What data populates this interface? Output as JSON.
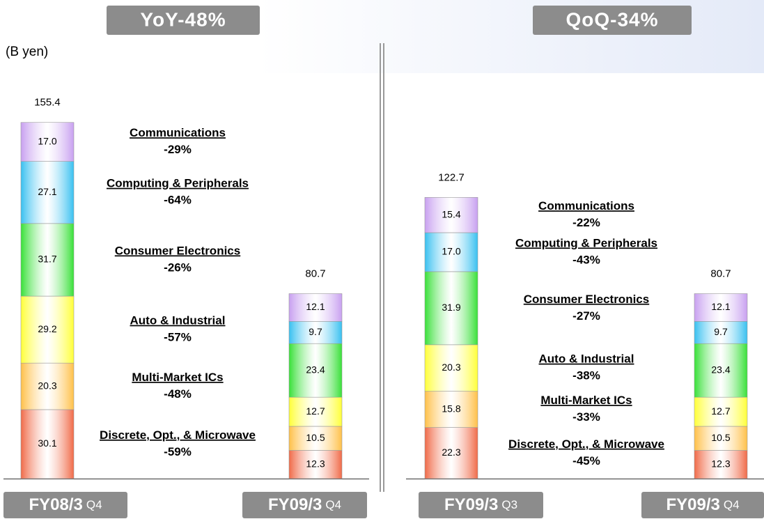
{
  "chart_data": [
    {
      "type": "stacked_bar",
      "title": "YoY-48%",
      "unit_label": "(B yen)",
      "categories": [
        "FY08/3",
        "FY09/3"
      ],
      "quarters": [
        "Q4",
        "Q4"
      ],
      "totals": [
        155.4,
        80.7
      ],
      "series": [
        {
          "name": "Discrete, Opt., & Microwave",
          "color": "#f06a48",
          "values": [
            30.1,
            12.3
          ],
          "value_labels": [
            "30.1",
            "12.3"
          ],
          "change_label": "-59%"
        },
        {
          "name": "Multi-Market ICs",
          "color": "#ffc048",
          "values": [
            20.3,
            10.5
          ],
          "value_labels": [
            "20.3",
            "10.5"
          ],
          "change_label": "-48%"
        },
        {
          "name": "Auto & Industrial",
          "color": "#ffff38",
          "values": [
            29.2,
            12.7
          ],
          "value_labels": [
            "29.2",
            "12.7"
          ],
          "change_label": "-57%"
        },
        {
          "name": "Consumer Electronics",
          "color": "#38e038",
          "values": [
            31.7,
            23.4
          ],
          "value_labels": [
            "31.7",
            "23.4"
          ],
          "change_label": "-26%"
        },
        {
          "name": "Computing & Peripherals",
          "color": "#38c0f0",
          "values": [
            27.1,
            9.7
          ],
          "value_labels": [
            "27.1",
            "9.7"
          ],
          "change_label": "-64%"
        },
        {
          "name": "Communications",
          "color": "#c8a0f0",
          "values": [
            17.0,
            12.1
          ],
          "value_labels": [
            "17.0",
            "12.1"
          ],
          "change_label": "-29%"
        }
      ]
    },
    {
      "type": "stacked_bar",
      "title": "QoQ-34%",
      "categories": [
        "FY09/3",
        "FY09/3"
      ],
      "quarters": [
        "Q3",
        "Q4"
      ],
      "totals": [
        122.7,
        80.7
      ],
      "series": [
        {
          "name": "Discrete, Opt., & Microwave",
          "color": "#f06a48",
          "values": [
            22.3,
            12.3
          ],
          "value_labels": [
            "22.3",
            "12.3"
          ],
          "change_label": "-45%"
        },
        {
          "name": "Multi-Market ICs",
          "color": "#ffc048",
          "values": [
            15.8,
            10.5
          ],
          "value_labels": [
            "15.8",
            "10.5"
          ],
          "change_label": "-33%"
        },
        {
          "name": "Auto & Industrial",
          "color": "#ffff38",
          "values": [
            20.3,
            12.7
          ],
          "value_labels": [
            "20.3",
            "12.7"
          ],
          "change_label": "-38%"
        },
        {
          "name": "Consumer Electronics",
          "color": "#38e038",
          "values": [
            31.9,
            23.4
          ],
          "value_labels": [
            "31.9",
            "23.4"
          ],
          "change_label": "-27%"
        },
        {
          "name": "Computing & Peripherals",
          "color": "#38c0f0",
          "values": [
            17.0,
            9.7
          ],
          "value_labels": [
            "17.0",
            "9.7"
          ],
          "change_label": "-43%"
        },
        {
          "name": "Communications",
          "color": "#c8a0f0",
          "values": [
            15.4,
            12.1
          ],
          "value_labels": [
            "15.4",
            "12.1"
          ],
          "change_label": "-22%"
        }
      ]
    }
  ]
}
